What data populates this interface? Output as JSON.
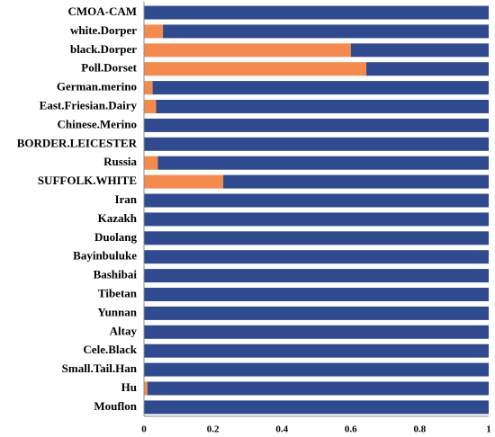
{
  "chart_data": {
    "type": "bar",
    "orientation": "horizontal",
    "stacked": true,
    "normalized": true,
    "title": "",
    "xlabel": "",
    "ylabel": "",
    "xlim": [
      0,
      1
    ],
    "xticks": [
      0,
      0.2,
      0.4,
      0.6,
      0.8,
      1
    ],
    "xtick_labels": [
      "0",
      "0.2",
      "0.4",
      "0.6",
      "0.8",
      "1"
    ],
    "grid": false,
    "legend": "none",
    "categories": [
      "CMOA-CAM",
      "white.Dorper",
      "black.Dorper",
      "Poll.Dorset",
      "German.merino",
      "East.Friesian.Dairy",
      "Chinese.Merino",
      "BORDER.LEICESTER",
      "Russia",
      "SUFFOLK.WHITE",
      "Iran",
      "Kazakh",
      "Duolang",
      "Bayinbuluke",
      "Bashibai",
      "Tibetan",
      "Yunnan",
      "Altay",
      "Cele.Black",
      "Small.Tail.Han",
      "Hu",
      "Mouflon"
    ],
    "series": [
      {
        "color": "#F58A4F",
        "values": [
          0,
          0.055,
          0.6,
          0.645,
          0.025,
          0.035,
          0,
          0,
          0.04,
          0.23,
          0,
          0,
          0,
          0,
          0,
          0,
          0,
          0,
          0,
          0,
          0.01,
          0
        ]
      },
      {
        "color": "#2F4A8E",
        "values": [
          1,
          0.945,
          0.4,
          0.355,
          0.975,
          0.965,
          1,
          1,
          0.96,
          0.77,
          1,
          1,
          1,
          1,
          1,
          1,
          1,
          1,
          1,
          1,
          0.99,
          1
        ]
      }
    ]
  }
}
